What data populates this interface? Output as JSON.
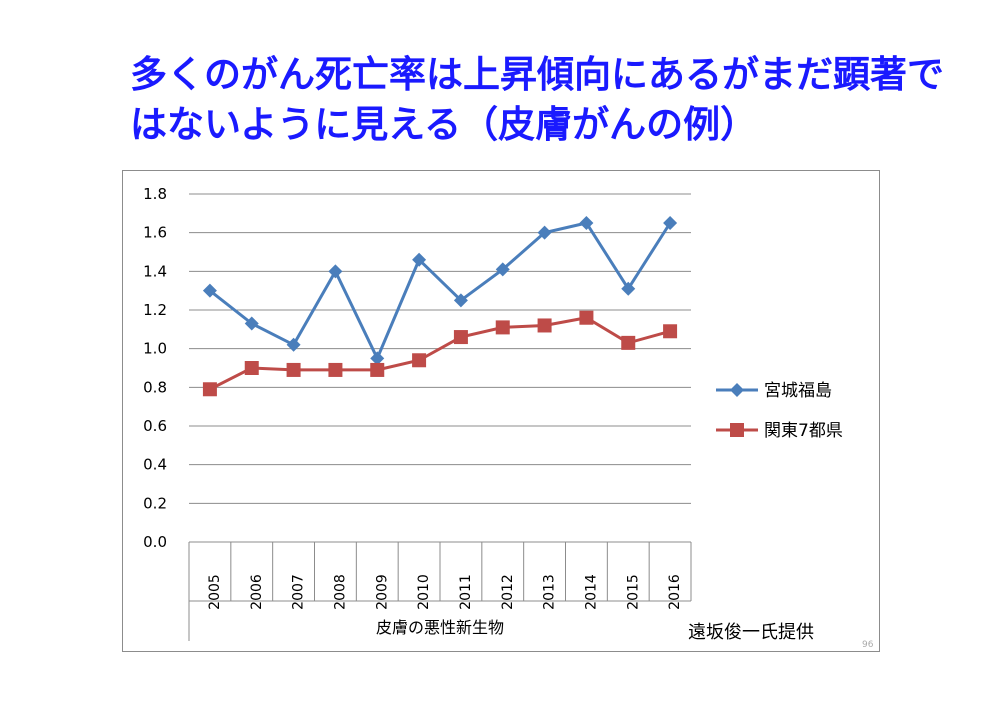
{
  "slide": {
    "title": "多くのがん死亡率は上昇傾向にあるがまだ顕著ではないように見える（皮膚がんの例）",
    "credit": "遠坂俊一氏提供",
    "page_number": "96"
  },
  "chart_data": {
    "type": "line",
    "title": "",
    "xlabel": "皮膚の悪性新生物",
    "ylabel": "",
    "categories": [
      "2005",
      "2006",
      "2007",
      "2008",
      "2009",
      "2010",
      "2011",
      "2012",
      "2013",
      "2014",
      "2015",
      "2016"
    ],
    "ylim": [
      0,
      1.8
    ],
    "yticks": [
      "0.0",
      "0.2",
      "0.4",
      "0.6",
      "0.8",
      "1.0",
      "1.2",
      "1.4",
      "1.6",
      "1.8"
    ],
    "grid": true,
    "legend_position": "right",
    "series": [
      {
        "name": "宮城福島",
        "marker": "diamond",
        "color": "#4a7ebb",
        "values": [
          1.3,
          1.13,
          1.02,
          1.4,
          0.95,
          1.46,
          1.25,
          1.41,
          1.6,
          1.65,
          1.31,
          1.65
        ]
      },
      {
        "name": "関東7都県",
        "marker": "square",
        "color": "#be4b48",
        "values": [
          0.79,
          0.9,
          0.89,
          0.89,
          0.89,
          0.94,
          1.06,
          1.11,
          1.12,
          1.16,
          1.03,
          1.09
        ]
      }
    ]
  }
}
